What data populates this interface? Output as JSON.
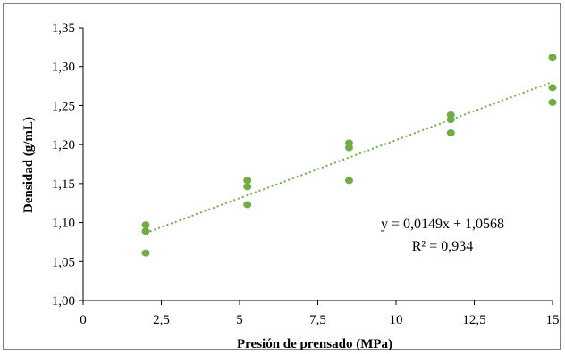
{
  "chart_data": {
    "type": "scatter",
    "xlabel": "Presión de prensado (MPa)",
    "ylabel": "Densidad (g/mL)",
    "xlim": [
      0,
      15
    ],
    "ylim": [
      1.0,
      1.35
    ],
    "x_ticks": [
      "0",
      "2,5",
      "5",
      "7,5",
      "10",
      "12,5",
      "15"
    ],
    "x_tick_values": [
      0,
      2.5,
      5,
      7.5,
      10,
      12.5,
      15
    ],
    "y_ticks": [
      "1,00",
      "1,05",
      "1,10",
      "1,15",
      "1,20",
      "1,25",
      "1,30",
      "1,35"
    ],
    "y_tick_values": [
      1.0,
      1.05,
      1.1,
      1.15,
      1.2,
      1.25,
      1.3,
      1.35
    ],
    "grid": false,
    "legend": false,
    "series": [
      {
        "color": "#70ad47",
        "points": [
          {
            "x": 2.0,
            "y": 1.097
          },
          {
            "x": 2.0,
            "y": 1.089
          },
          {
            "x": 2.0,
            "y": 1.061
          },
          {
            "x": 5.25,
            "y": 1.154
          },
          {
            "x": 5.25,
            "y": 1.146
          },
          {
            "x": 5.25,
            "y": 1.123
          },
          {
            "x": 8.5,
            "y": 1.202
          },
          {
            "x": 8.5,
            "y": 1.196
          },
          {
            "x": 8.5,
            "y": 1.154
          },
          {
            "x": 11.75,
            "y": 1.238
          },
          {
            "x": 11.75,
            "y": 1.232
          },
          {
            "x": 11.75,
            "y": 1.215
          },
          {
            "x": 15.0,
            "y": 1.312
          },
          {
            "x": 15.0,
            "y": 1.273
          },
          {
            "x": 15.0,
            "y": 1.254
          }
        ]
      }
    ],
    "trendline": {
      "type": "linear",
      "style": "dotted",
      "color": "#70ad47",
      "slope": 0.0149,
      "intercept": 1.0568,
      "x_range": [
        2.0,
        15.0
      ]
    },
    "annotations": {
      "equation": "y = 0,0149x + 1,0568",
      "r_squared": "R² = 0,934"
    }
  }
}
